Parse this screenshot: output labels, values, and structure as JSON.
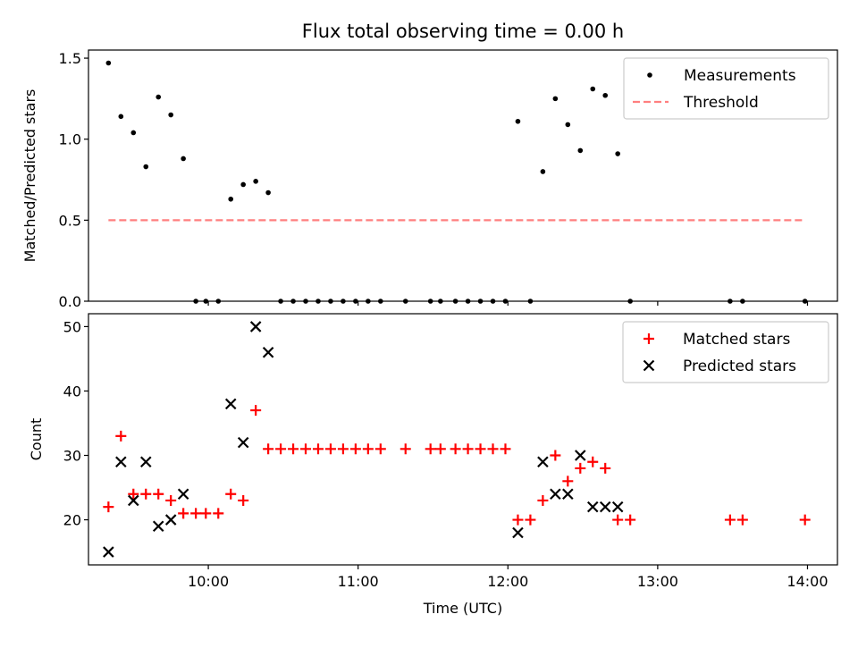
{
  "title": "Flux total observing time = 0.00 h",
  "colors": {
    "measurement": "#000000",
    "threshold": "#ff7f7f",
    "matched": "#ff0000",
    "predicted": "#000000"
  },
  "chart_data": [
    {
      "type": "scatter",
      "panel": "top",
      "ylabel": "Matched/Predicted stars",
      "xlim": [
        "09:12",
        "14:12"
      ],
      "ylim": [
        0,
        1.55
      ],
      "yticks": [
        0.0,
        0.5,
        1.0,
        1.5
      ],
      "ytick_labels": [
        "0.0",
        "0.5",
        "1.0",
        "1.5"
      ],
      "legend": {
        "placement": "top-right",
        "entries": [
          "Measurements",
          "Threshold"
        ]
      },
      "series": [
        {
          "name": "Measurements",
          "kind": "points",
          "x": [
            "09:20",
            "09:25",
            "09:30",
            "09:35",
            "09:40",
            "09:45",
            "09:50",
            "09:55",
            "09:59",
            "10:04",
            "10:09",
            "10:14",
            "10:19",
            "10:24",
            "10:29",
            "10:34",
            "10:39",
            "10:44",
            "10:49",
            "10:54",
            "10:59",
            "11:04",
            "11:09",
            "11:19",
            "11:29",
            "11:33",
            "11:39",
            "11:44",
            "11:49",
            "11:54",
            "11:59",
            "12:04",
            "12:09",
            "12:14",
            "12:19",
            "12:24",
            "12:29",
            "12:34",
            "12:39",
            "12:44",
            "12:49",
            "13:29",
            "13:34",
            "13:59"
          ],
          "y": [
            1.47,
            1.14,
            1.04,
            0.83,
            1.26,
            1.15,
            0.88,
            0,
            0,
            0,
            0.63,
            0.72,
            0.74,
            0.67,
            0,
            0,
            0,
            0,
            0,
            0,
            0,
            0,
            0,
            0,
            0,
            0,
            0,
            0,
            0,
            0,
            0,
            1.11,
            0,
            0.8,
            1.25,
            1.09,
            0.93,
            1.31,
            1.27,
            0.91,
            0,
            0,
            0,
            0
          ]
        },
        {
          "name": "Threshold",
          "kind": "line",
          "x": [
            "09:20",
            "13:59"
          ],
          "y": [
            0.5,
            0.5
          ]
        }
      ]
    },
    {
      "type": "scatter",
      "panel": "bottom",
      "ylabel": "Count",
      "xlabel": "Time (UTC)",
      "xlim": [
        "09:12",
        "14:12"
      ],
      "ylim": [
        13,
        52
      ],
      "yticks": [
        20,
        30,
        40,
        50
      ],
      "ytick_labels": [
        "20",
        "30",
        "40",
        "50"
      ],
      "xticks": [
        "10:00",
        "11:00",
        "12:00",
        "13:00",
        "14:00"
      ],
      "xtick_labels": [
        "10:00",
        "11:00",
        "12:00",
        "13:00",
        "14:00"
      ],
      "legend": {
        "placement": "top-right",
        "entries": [
          "Matched stars",
          "Predicted stars"
        ]
      },
      "series": [
        {
          "name": "Matched stars",
          "marker": "plus",
          "x": [
            "09:20",
            "09:25",
            "09:30",
            "09:35",
            "09:40",
            "09:45",
            "09:50",
            "09:55",
            "09:59",
            "10:04",
            "10:09",
            "10:14",
            "10:19",
            "10:24",
            "10:29",
            "10:34",
            "10:39",
            "10:44",
            "10:49",
            "10:54",
            "10:59",
            "11:04",
            "11:09",
            "11:19",
            "11:29",
            "11:33",
            "11:39",
            "11:44",
            "11:49",
            "11:54",
            "11:59",
            "12:04",
            "12:09",
            "12:14",
            "12:19",
            "12:24",
            "12:29",
            "12:34",
            "12:39",
            "12:44",
            "12:49",
            "13:29",
            "13:34",
            "13:59"
          ],
          "y": [
            22,
            33,
            24,
            24,
            24,
            23,
            21,
            21,
            21,
            21,
            24,
            23,
            37,
            31,
            31,
            31,
            31,
            31,
            31,
            31,
            31,
            31,
            31,
            31,
            31,
            31,
            31,
            31,
            31,
            31,
            31,
            20,
            20,
            23,
            30,
            26,
            28,
            29,
            28,
            20,
            20,
            20,
            20,
            20
          ]
        },
        {
          "name": "Predicted stars",
          "marker": "x",
          "x": [
            "09:20",
            "09:25",
            "09:30",
            "09:35",
            "09:40",
            "09:45",
            "09:50",
            "10:09",
            "10:14",
            "10:19",
            "10:24",
            "12:04",
            "12:14",
            "12:19",
            "12:24",
            "12:29",
            "12:34",
            "12:39",
            "12:44"
          ],
          "y": [
            15,
            29,
            23,
            29,
            19,
            20,
            24,
            38,
            32,
            50,
            46,
            18,
            29,
            24,
            24,
            30,
            22,
            22,
            22
          ]
        }
      ]
    }
  ]
}
